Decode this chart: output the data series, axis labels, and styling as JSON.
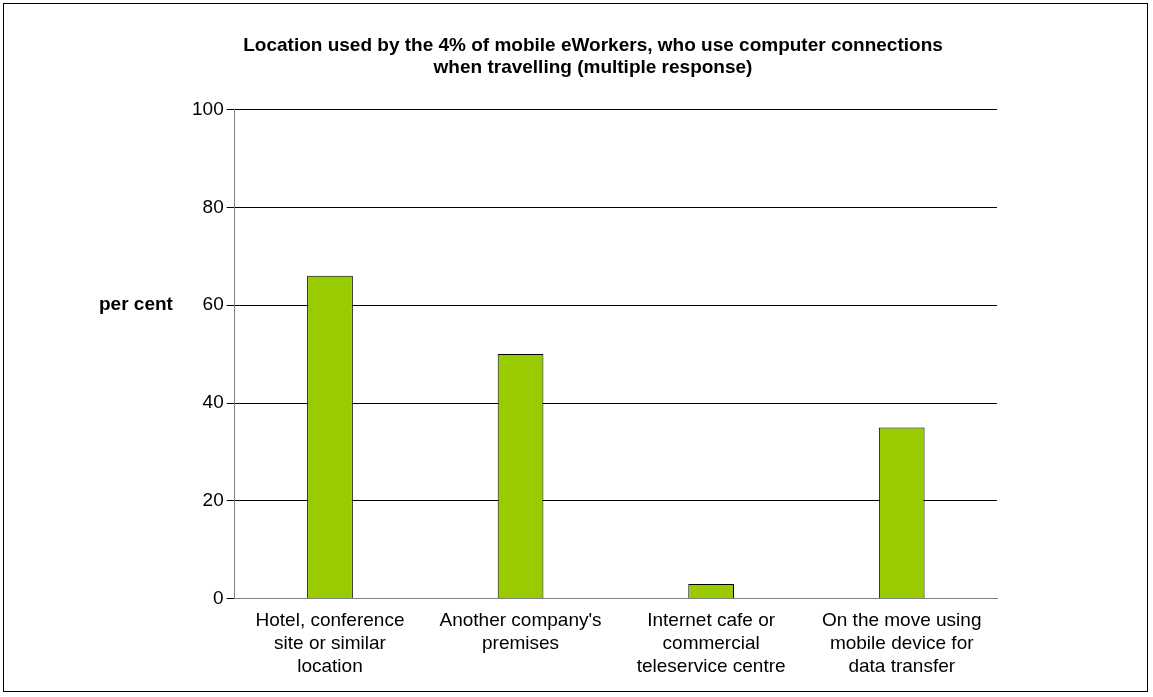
{
  "chart_data": {
    "type": "bar",
    "title": "Location used by the 4% of mobile eWorkers, who use computer connections when travelling (multiple response)",
    "ylabel": "per cent",
    "categories": [
      "Hotel, conference site or similar location",
      "Another company's premises",
      "Internet cafe or commercial teleservice centre",
      "On the move using mobile device for data transfer"
    ],
    "values": [
      66,
      50,
      3,
      35
    ],
    "color": "#99cc00",
    "ylim": [
      0,
      100
    ],
    "yticks": [
      0,
      20,
      40,
      60,
      80,
      100
    ],
    "grid": "y"
  }
}
